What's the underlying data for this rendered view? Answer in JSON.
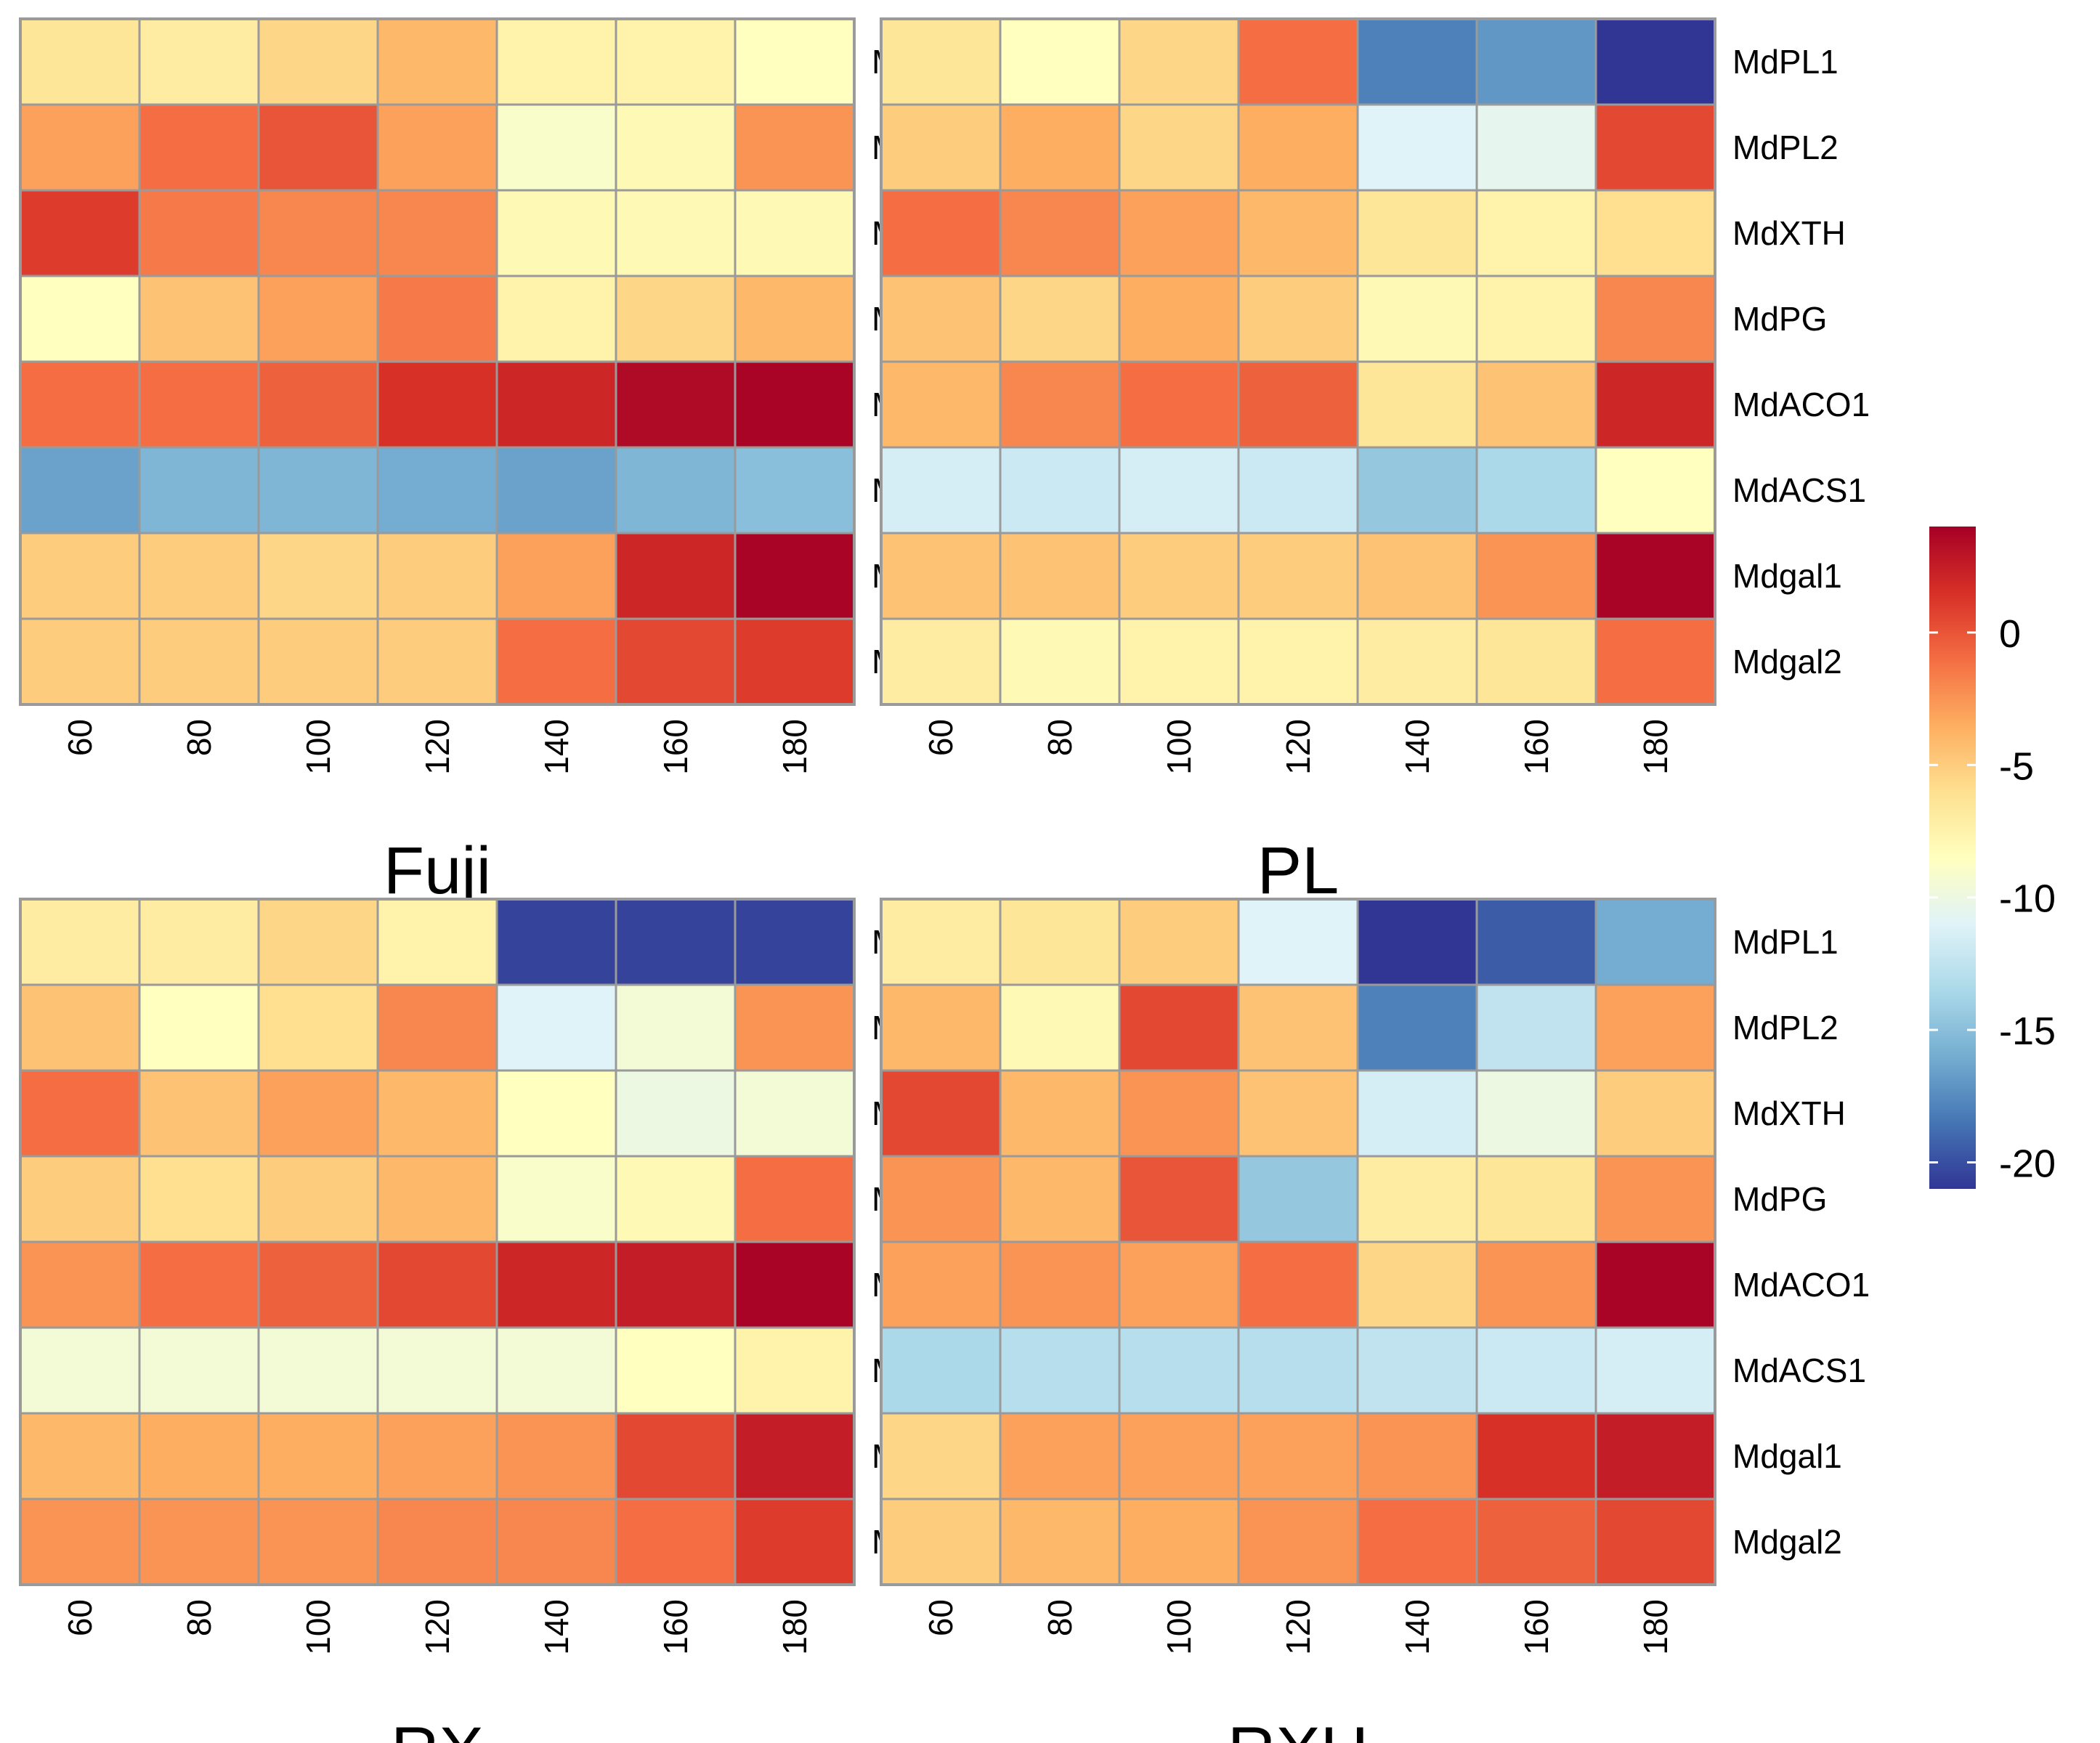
{
  "chart_data": {
    "type": "heatmap",
    "rows": [
      "MdPL1",
      "MdPL2",
      "MdXTH",
      "MdPG",
      "MdACO1",
      "MdACS1",
      "Mdgal1",
      "Mdgal2"
    ],
    "columns": [
      "60",
      "80",
      "100",
      "120",
      "140",
      "160",
      "180"
    ],
    "colorbar": {
      "range": [
        -21,
        4
      ],
      "ticks": [
        0,
        -5,
        -10,
        -15,
        -20
      ],
      "tick_labels": [
        "0",
        "-5",
        "-10",
        "-15",
        "-20"
      ],
      "colors": [
        "#313695",
        "#4575b4",
        "#74add1",
        "#abd9e9",
        "#e0f3f8",
        "#ffffbf",
        "#fee090",
        "#fdae61",
        "#f46d43",
        "#d73027",
        "#a50026"
      ]
    },
    "panels": [
      {
        "title": "Fuji",
        "values": [
          [
            -6.5,
            -7.0,
            -5.5,
            -4.0,
            -7.5,
            -7.5,
            -8.5
          ],
          [
            -3.0,
            -1.0,
            0.0,
            -3.0,
            -9.0,
            -8.0,
            -2.5
          ],
          [
            1.0,
            -1.5,
            -2.0,
            -2.0,
            -8.0,
            -8.0,
            -8.0
          ],
          [
            -8.5,
            -4.5,
            -3.0,
            -1.5,
            -7.5,
            -5.5,
            -4.0
          ],
          [
            -1.0,
            -1.0,
            -0.5,
            1.5,
            2.0,
            3.5,
            3.8
          ],
          [
            -16.5,
            -15.5,
            -15.5,
            -16.0,
            -16.5,
            -15.5,
            -15.0
          ],
          [
            -5.0,
            -5.0,
            -5.5,
            -5.0,
            -3.0,
            2.0,
            3.8
          ],
          [
            -5.0,
            -5.0,
            -5.0,
            -5.0,
            -1.0,
            0.5,
            1.0
          ]
        ]
      },
      {
        "title": "PL",
        "values": [
          [
            -6.5,
            -8.5,
            -5.5,
            -1.0,
            -18.0,
            -17.0,
            -21.0
          ],
          [
            -5.0,
            -3.5,
            -5.5,
            -3.5,
            -11.0,
            -10.5,
            0.5
          ],
          [
            -1.0,
            -2.0,
            -3.0,
            -4.0,
            -6.5,
            -7.5,
            -6.0
          ],
          [
            -4.5,
            -5.5,
            -3.5,
            -5.0,
            -8.0,
            -7.5,
            -2.0
          ],
          [
            -4.0,
            -2.0,
            -1.0,
            -0.5,
            -6.5,
            -4.5,
            2.0
          ],
          [
            -11.5,
            -12.0,
            -11.5,
            -12.0,
            -14.5,
            -13.5,
            -8.5
          ],
          [
            -4.5,
            -4.5,
            -5.0,
            -5.0,
            -4.5,
            -2.5,
            3.8
          ],
          [
            -7.0,
            -8.0,
            -7.5,
            -7.5,
            -7.0,
            -6.5,
            -1.0
          ]
        ]
      },
      {
        "title": "RX",
        "values": [
          [
            -7.0,
            -7.0,
            -5.5,
            -7.5,
            -20.5,
            -20.5,
            -20.5
          ],
          [
            -4.5,
            -8.5,
            -6.0,
            -2.0,
            -11.0,
            -9.5,
            -2.5
          ],
          [
            -1.0,
            -4.5,
            -3.0,
            -4.0,
            -8.5,
            -10.0,
            -9.5
          ],
          [
            -5.0,
            -6.0,
            -5.0,
            -4.0,
            -9.0,
            -8.0,
            -1.0
          ],
          [
            -2.5,
            -1.0,
            -0.5,
            0.5,
            2.0,
            2.5,
            3.8
          ],
          [
            -9.5,
            -9.5,
            -9.5,
            -9.5,
            -9.5,
            -8.5,
            -7.5
          ],
          [
            -4.0,
            -3.5,
            -3.5,
            -3.0,
            -2.5,
            0.5,
            2.5
          ],
          [
            -2.5,
            -2.5,
            -2.5,
            -2.0,
            -2.0,
            -1.0,
            1.0
          ]
        ]
      },
      {
        "title": "RXH",
        "values": [
          [
            -7.0,
            -6.5,
            -5.0,
            -11.0,
            -21.0,
            -19.5,
            -16.0
          ],
          [
            -4.0,
            -8.0,
            0.5,
            -4.5,
            -18.0,
            -12.5,
            -3.0
          ],
          [
            0.5,
            -4.0,
            -2.5,
            -4.5,
            -11.5,
            -10.0,
            -5.0
          ],
          [
            -2.5,
            -4.0,
            0.0,
            -14.5,
            -7.0,
            -6.5,
            -2.5
          ],
          [
            -3.0,
            -2.5,
            -3.0,
            -1.0,
            -5.5,
            -2.5,
            3.8
          ],
          [
            -13.5,
            -13.0,
            -13.0,
            -13.0,
            -12.5,
            -12.0,
            -11.5
          ],
          [
            -5.5,
            -3.0,
            -3.0,
            -3.0,
            -2.5,
            1.5,
            2.5
          ],
          [
            -5.0,
            -4.0,
            -3.5,
            -2.5,
            -1.0,
            -0.5,
            0.5
          ]
        ]
      }
    ]
  }
}
